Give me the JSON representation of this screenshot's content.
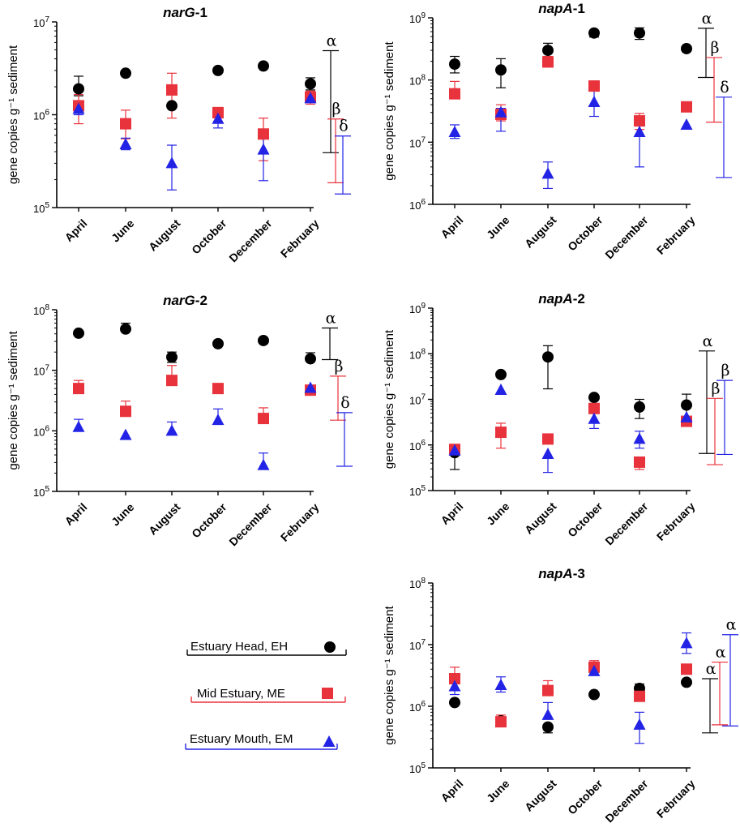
{
  "chart_data": [
    {
      "type": "scatter",
      "title": "narG",
      "title_suffix": "-1",
      "ylabel": "gene copies g⁻¹ sediment",
      "yscale": "log",
      "ylim_exp": [
        5,
        7
      ],
      "categories": [
        "April",
        "June",
        "August",
        "October",
        "December",
        "February"
      ],
      "series": [
        {
          "name": "Estuary Head, EH",
          "marker": "circle",
          "color": "#000000",
          "values": [
            1900000.0,
            2800000.0,
            1250000.0,
            3000000.0,
            3350000.0,
            2150000.0
          ],
          "err_low": [
            1600000.0,
            null,
            null,
            null,
            null,
            1850000.0
          ],
          "err_high": [
            2600000.0,
            null,
            null,
            null,
            null,
            2500000.0
          ]
        },
        {
          "name": "Mid Estuary, ME",
          "marker": "square",
          "color": "#e8323c",
          "values": [
            1250000.0,
            800000.0,
            1850000.0,
            1050000.0,
            620000.0,
            1550000.0
          ],
          "err_low": [
            800000.0,
            550000.0,
            920000.0,
            850000.0,
            320000.0,
            1300000.0
          ],
          "err_high": [
            1650000.0,
            1120000.0,
            2800000.0,
            1200000.0,
            920000.0,
            1800000.0
          ]
        },
        {
          "name": "Estuary Mouth, EM",
          "marker": "triangle",
          "color": "#2323e6",
          "values": [
            1150000.0,
            480000.0,
            300000.0,
            900000.0,
            420000.0,
            1500000.0
          ],
          "err_low": [
            1000000.0,
            420000.0,
            155000.0,
            720000.0,
            195000.0,
            null
          ],
          "err_high": [
            null,
            560000.0,
            470000.0,
            null,
            630000.0,
            null
          ]
        }
      ],
      "sig_bars": [
        {
          "label": "α",
          "color": "#000000",
          "low": 390000.0,
          "high": 4900000.0
        },
        {
          "label": "β",
          "color": "#e8323c",
          "low": 185000.0,
          "high": 900000.0
        },
        {
          "label": "δ",
          "color": "#2323e6",
          "low": 140000.0,
          "high": 590000.0
        }
      ]
    },
    {
      "type": "scatter",
      "title": "napA",
      "title_suffix": "-1",
      "ylabel": "gene copies g⁻¹ sediment",
      "yscale": "log",
      "ylim_exp": [
        6,
        9
      ],
      "categories": [
        "April",
        "June",
        "August",
        "October",
        "December",
        "February"
      ],
      "series": [
        {
          "name": "Estuary Head, EH",
          "marker": "circle",
          "color": "#000000",
          "values": [
            180000000.0,
            145000000.0,
            300000000.0,
            570000000.0,
            570000000.0,
            320000000.0
          ],
          "err_low": [
            130000000.0,
            75000000.0,
            220000000.0,
            490000000.0,
            450000000.0,
            null
          ],
          "err_high": [
            240000000.0,
            220000000.0,
            390000000.0,
            630000000.0,
            690000000.0,
            null
          ]
        },
        {
          "name": "Mid Estuary, ME",
          "marker": "square",
          "color": "#e8323c",
          "values": [
            60000000.0,
            28000000.0,
            195000000.0,
            80000000.0,
            22000000.0,
            37000000.0
          ],
          "err_low": [
            null,
            22000000.0,
            null,
            null,
            16000000.0,
            null
          ],
          "err_high": [
            95000000.0,
            40000000.0,
            240000000.0,
            null,
            29000000.0,
            null
          ]
        },
        {
          "name": "Estuary Mouth, EM",
          "marker": "triangle",
          "color": "#2323e6",
          "values": [
            14500000.0,
            30000000.0,
            3100000.0,
            44000000.0,
            14500000.0,
            19000000.0
          ],
          "err_low": [
            11500000.0,
            15000000.0,
            1800000.0,
            26000000.0,
            4000000.0,
            null
          ],
          "err_high": [
            19000000.0,
            35000000.0,
            4800000.0,
            75000000.0,
            22000000.0,
            null
          ]
        }
      ],
      "sig_bars": [
        {
          "label": "α",
          "color": "#000000",
          "low": 110000000.0,
          "high": 680000000.0
        },
        {
          "label": "β",
          "color": "#e8323c",
          "low": 21000000.0,
          "high": 230000000.0
        },
        {
          "label": "δ",
          "color": "#2323e6",
          "low": 2700000.0,
          "high": 53000000.0
        }
      ]
    },
    {
      "type": "scatter",
      "title": "narG",
      "title_suffix": "-2",
      "ylabel": "gene copies g⁻¹ sediment",
      "yscale": "log",
      "ylim_exp": [
        5,
        8
      ],
      "categories": [
        "April",
        "June",
        "August",
        "October",
        "December",
        "February"
      ],
      "series": [
        {
          "name": "Estuary Head, EH",
          "marker": "circle",
          "color": "#000000",
          "values": [
            41000000.0,
            48000000.0,
            16500000.0,
            27500000.0,
            31000000.0,
            15500000.0
          ],
          "err_low": [
            null,
            null,
            13500000.0,
            null,
            null,
            null
          ],
          "err_high": [
            null,
            60000000.0,
            20000000.0,
            null,
            null,
            19500000.0
          ]
        },
        {
          "name": "Mid Estuary, ME",
          "marker": "square",
          "color": "#e8323c",
          "values": [
            5000000.0,
            2100000.0,
            6800000.0,
            5000000.0,
            1600000.0,
            4700000.0
          ],
          "err_low": [
            null,
            null,
            null,
            null,
            null,
            null
          ],
          "err_high": [
            6800000.0,
            3100000.0,
            12000000.0,
            null,
            2400000.0,
            null
          ]
        },
        {
          "name": "Estuary Mouth, EM",
          "marker": "triangle",
          "color": "#2323e6",
          "values": [
            1150000.0,
            850000.0,
            1000000.0,
            1500000.0,
            270000.0,
            5100000.0
          ],
          "err_low": [
            null,
            null,
            null,
            null,
            null,
            null
          ],
          "err_high": [
            1550000.0,
            null,
            1400000.0,
            2300000.0,
            430000.0,
            null
          ]
        }
      ],
      "sig_bars": [
        {
          "label": "α",
          "color": "#000000",
          "low": 15000000.0,
          "high": 50000000.0
        },
        {
          "label": "β",
          "color": "#e8323c",
          "low": 1500000.0,
          "high": 8000000.0
        },
        {
          "label": "δ",
          "color": "#2323e6",
          "low": 260000.0,
          "high": 2000000.0
        }
      ]
    },
    {
      "type": "scatter",
      "title": "napA",
      "title_suffix": "-2",
      "ylabel": "gene copies g⁻¹ sediment",
      "yscale": "log",
      "ylim_exp": [
        5,
        9
      ],
      "categories": [
        "April",
        "June",
        "August",
        "October",
        "December",
        "February"
      ],
      "series": [
        {
          "name": "Estuary Head, EH",
          "marker": "circle",
          "color": "#000000",
          "values": [
            680000.0,
            35000000.0,
            85000000.0,
            11000000.0,
            6800000.0,
            7500000.0
          ],
          "err_low": [
            290000.0,
            null,
            17000000.0,
            null,
            3800000.0,
            2600000.0
          ],
          "err_high": [
            null,
            null,
            150000000.0,
            null,
            10000000.0,
            13000000.0
          ]
        },
        {
          "name": "Mid Estuary, ME",
          "marker": "square",
          "color": "#e8323c",
          "values": [
            800000.0,
            1900000.0,
            1350000.0,
            6300000.0,
            420000.0,
            3300000.0
          ],
          "err_low": [
            null,
            850000.0,
            null,
            null,
            290000.0,
            null
          ],
          "err_high": [
            null,
            3000000.0,
            null,
            null,
            null,
            null
          ]
        },
        {
          "name": "Estuary Mouth, EM",
          "marker": "triangle",
          "color": "#2323e6",
          "values": [
            750000.0,
            16000000.0,
            630000.0,
            3700000.0,
            1350000.0,
            4000000.0
          ],
          "err_low": [
            null,
            null,
            250000.0,
            2300000.0,
            850000.0,
            null
          ],
          "err_high": [
            null,
            null,
            null,
            null,
            2000000.0,
            null
          ]
        }
      ],
      "sig_bars": [
        {
          "label": "α",
          "color": "#000000",
          "low": 650000.0,
          "high": 115000000.0
        },
        {
          "label": "β",
          "color": "#e8323c",
          "low": 370000.0,
          "high": 10500000.0
        },
        {
          "label": "β",
          "color": "#2323e6",
          "low": 620000.0,
          "high": 26000000.0
        }
      ]
    },
    {
      "type": "scatter",
      "title": "napA",
      "title_suffix": "-3",
      "ylabel": "gene copies g⁻¹ sediment",
      "yscale": "log",
      "ylim_exp": [
        5,
        8
      ],
      "categories": [
        "April",
        "June",
        "August",
        "October",
        "December",
        "February"
      ],
      "series": [
        {
          "name": "Estuary Head, EH",
          "marker": "circle",
          "color": "#000000",
          "values": [
            1150000.0,
            580000.0,
            460000.0,
            1550000.0,
            1950000.0,
            2450000.0
          ],
          "err_low": [
            null,
            null,
            370000.0,
            null,
            null,
            null
          ],
          "err_high": [
            null,
            null,
            null,
            null,
            2300000.0,
            null
          ]
        },
        {
          "name": "Mid Estuary, ME",
          "marker": "square",
          "color": "#e8323c",
          "values": [
            2800000.0,
            560000.0,
            1800000.0,
            4300000.0,
            1450000.0,
            4000000.0
          ],
          "err_low": [
            null,
            null,
            null,
            null,
            null,
            null
          ],
          "err_high": [
            4300000.0,
            720000.0,
            2600000.0,
            5500000.0,
            null,
            null
          ]
        },
        {
          "name": "Estuary Mouth, EM",
          "marker": "triangle",
          "color": "#2323e6",
          "values": [
            2100000.0,
            2200000.0,
            720000.0,
            3700000.0,
            500000.0,
            10500000.0
          ],
          "err_low": [
            1550000.0,
            1700000.0,
            null,
            null,
            250000.0,
            7200000.0
          ],
          "err_high": [
            null,
            3000000.0,
            1150000.0,
            null,
            800000.0,
            15500000.0
          ]
        }
      ],
      "sig_bars": [
        {
          "label": "α",
          "color": "#000000",
          "low": 370000.0,
          "high": 2800000.0
        },
        {
          "label": "α",
          "color": "#e8323c",
          "low": 500000.0,
          "high": 5200000.0
        },
        {
          "label": "α",
          "color": "#2323e6",
          "low": 480000.0,
          "high": 14500000.0
        }
      ]
    }
  ],
  "legend": {
    "items": [
      {
        "label": "Estuary Head, EH",
        "marker": "circle",
        "color": "#000000"
      },
      {
        "label": "Mid Estuary, ME",
        "marker": "square",
        "color": "#e8323c"
      },
      {
        "label": "Estuary Mouth, EM",
        "marker": "triangle",
        "color": "#2323e6"
      }
    ]
  }
}
